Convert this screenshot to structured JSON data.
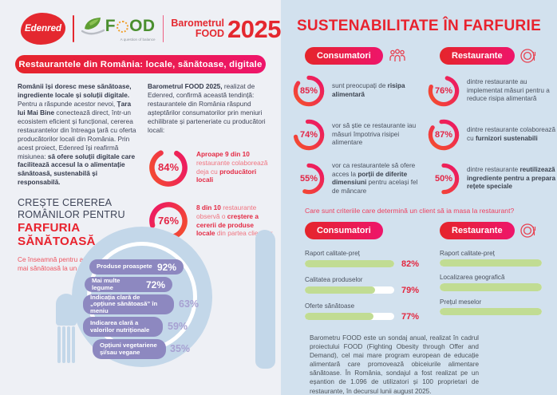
{
  "brand": {
    "edenred": "Edenred",
    "food_f": "F",
    "food_od": "OD",
    "food_tagline": "A question of balance",
    "title_line1": "Barometrul",
    "title_line2": "FOOD",
    "year": "2025"
  },
  "colors": {
    "brand_red": "#e4282f",
    "brand_pink": "#ee156b",
    "purple_bar": "#8d88c0",
    "green_bar": "#c1dc93",
    "plate_blue": "#c3d7e9",
    "right_bg": "#d2e1ee"
  },
  "left": {
    "banner": "Restaurantele din România: locale, sănătoase, digitale",
    "intro": {
      "b1": "Românii își doresc mese sănătoase, ingrediente locale și soluții digitale.",
      "r1": " Pentru a răspunde acestor nevoi, ",
      "b2": "Țara lui Mai Bine",
      "r2": " conectează direct, într-un ecosistem eficient și funcțional, cererea restaurantelor din întreaga țară cu oferta producătorilor locali din România. Prin acest proiect, Edenred își reafirmă misiunea: ",
      "b3": "să ofere soluții digitale care facilitează accesul la o alimentație sănătoasă, sustenabilă și responsabilă."
    },
    "heading": {
      "line1": "CREȘTE CEREREA",
      "line2": "ROMÂNILOR PENTRU",
      "line3": "FARFURIA SĂNĂTOASĂ"
    },
    "question": "Ce înseamnă pentru angajați o ofertă mai sănătoasă la un restaurant?",
    "about": {
      "b1": "Barometrul FOOD 2025,",
      "r1": " realizat de Edenred, confirmă această tendință: restaurantele din România răspund așteptărilor consumatorilor prin meniuri echilibrate și parteneriate cu producători locali:"
    },
    "stats": [
      {
        "pct": "84%",
        "value": 84,
        "b1": "Aproape 9 din 10",
        "r1": " restaurante colaborează deja cu ",
        "b2": "producători locali",
        "r2": ""
      },
      {
        "pct": "76%",
        "value": 76,
        "b1": "8 din 10",
        "r1": " restaurante observă o ",
        "b2": "creștere a cererii de produse locale",
        "r2": " din partea clienților"
      }
    ],
    "plate_bars": [
      {
        "label": "Produse proaspete",
        "pct": "92%",
        "value": 92
      },
      {
        "label": "Mai multe legume",
        "pct": "72%",
        "value": 72
      },
      {
        "label": "Indicația clară de „opțiune sănătoasă” în meniu",
        "pct": "63%",
        "value": 63
      },
      {
        "label": "Indicarea clară a valorilor nutriționale",
        "pct": "59%",
        "value": 59
      },
      {
        "label": "Opțiuni vegetariene și/sau vegane",
        "pct": "35%",
        "value": 35
      }
    ]
  },
  "right": {
    "title": "SUSTENABILITATE ÎN FARFURIE",
    "consumers_label": "Consumatori",
    "restaurants_label": "Restaurante",
    "consumer_stats": [
      {
        "pct": "85%",
        "value": 85,
        "r1": "sunt preocupați de ",
        "b1": "risipa alimentară",
        "r2": ""
      },
      {
        "pct": "74%",
        "value": 74,
        "r1": "vor să știe ce restaurante iau măsuri împotriva risipei alimentare",
        "b1": "",
        "r2": ""
      },
      {
        "pct": "55%",
        "value": 55,
        "r1": "vor ca restaurantele să ofere acces la ",
        "b1": "porții de diferite dimensiuni",
        "r2": " pentru același fel de mâncare"
      }
    ],
    "restaurant_stats": [
      {
        "pct": "76%",
        "value": 76,
        "r1": "dintre restaurante au implementat măsuri pentru a reduce risipa alimentară",
        "b1": "",
        "r2": ""
      },
      {
        "pct": "87%",
        "value": 87,
        "r1": "dintre restaurante colaborează cu ",
        "b1": "furnizori sustenabili",
        "r2": ""
      },
      {
        "pct": "50%",
        "value": 50,
        "r1": "dintre restaurante ",
        "b1": "reutilizează ingrediente pentru a prepara rețete speciale",
        "r2": ""
      }
    ],
    "criteria": {
      "question": "Care sunt criteriile care determină un client să ia masa la restaurant?",
      "consumers": [
        {
          "label": "Raport calitate-preț",
          "pct": "82%",
          "value": 82,
          "fill": 100
        },
        {
          "label": "Calitatea produselor",
          "pct": "79%",
          "value": 79,
          "fill": 79
        },
        {
          "label": "Oferte sănătoase",
          "pct": "77%",
          "value": 77,
          "fill": 77
        }
      ],
      "restaurants": [
        {
          "label": "Raport calitate-preț",
          "fill": 100
        },
        {
          "label": "Localizarea geografică",
          "fill": 100
        },
        {
          "label": "Prețul meselor",
          "fill": 100
        }
      ]
    },
    "footer": "Barometru FOOD este un sondaj anual, realizat în cadrul proiectului FOOD (Fighting Obesity through Offer and Demand), cel mai mare program european de educație alimentară care promovează obiceiurile alimentare sănătoase. În România, sondajul a fost realizat pe un eșantion de 1.096 de utilizatori și 100 proprietari de restaurante, în decursul lunii august 2025."
  },
  "chart_data": [
    {
      "type": "pie",
      "variant": "donut",
      "title": "Restaurantele din România: locale, sănătoase, digitale",
      "labels": [
        "Aproape 9 din 10 restaurante colaborează deja cu producători locali",
        "8 din 10 restaurante observă o creștere a cererii de produse locale din partea clienților"
      ],
      "values": [
        84,
        76
      ],
      "unit": "%"
    },
    {
      "type": "bar",
      "title": "Ce înseamnă pentru angajați o ofertă mai sănătoasă la un restaurant?",
      "categories": [
        "Produse proaspete",
        "Mai multe legume",
        "Indicația clară de „opțiune sănătoasă” în meniu",
        "Indicarea clară a valorilor nutriționale",
        "Opțiuni vegetariene și/sau vegane"
      ],
      "values": [
        92,
        72,
        63,
        59,
        35
      ],
      "unit": "%"
    },
    {
      "type": "pie",
      "variant": "donut",
      "title": "Sustenabilitate în farfurie — Consumatori",
      "labels": [
        "sunt preocupați de risipa alimentară",
        "vor să știe ce restaurante iau măsuri împotriva risipei alimentare",
        "vor ca restaurantele să ofere acces la porții de diferite dimensiuni pentru același fel de mâncare"
      ],
      "values": [
        85,
        74,
        55
      ],
      "unit": "%"
    },
    {
      "type": "pie",
      "variant": "donut",
      "title": "Sustenabilitate în farfurie — Restaurante",
      "labels": [
        "dintre restaurante au implementat măsuri pentru a reduce risipa alimentară",
        "dintre restaurante colaborează cu furnizori sustenabili",
        "dintre restaurante reutilizează ingrediente pentru a prepara rețete speciale"
      ],
      "values": [
        76,
        87,
        50
      ],
      "unit": "%"
    },
    {
      "type": "bar",
      "title": "Criterii care determină un client să ia masa la restaurant — Consumatori",
      "categories": [
        "Raport calitate-preț",
        "Calitatea produselor",
        "Oferte sănătoase"
      ],
      "values": [
        82,
        79,
        77
      ],
      "unit": "%"
    },
    {
      "type": "bar",
      "title": "Criterii care determină un client să ia masa la restaurant — Restaurante",
      "categories": [
        "Raport calitate-preț",
        "Localizarea geografică",
        "Prețul meselor"
      ],
      "values": [
        null,
        null,
        null
      ],
      "note": "values not shown in source"
    }
  ]
}
